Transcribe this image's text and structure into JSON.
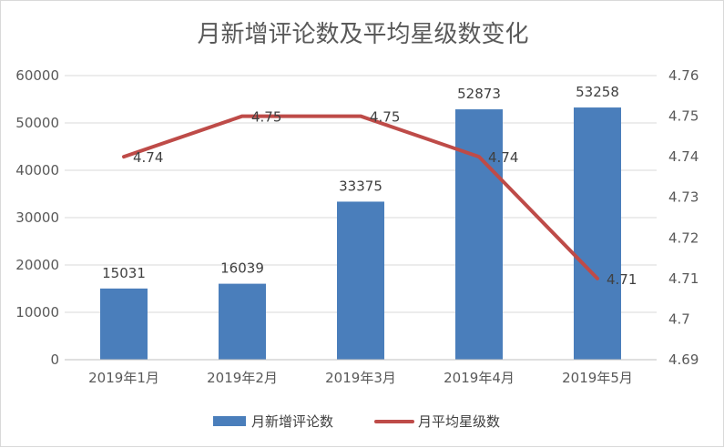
{
  "chart_data": {
    "type": "bar",
    "title": "月新增评论数及平均星级数变化",
    "categories": [
      "2019年1月",
      "2019年2月",
      "2019年3月",
      "2019年4月",
      "2019年5月"
    ],
    "series": [
      {
        "name": "月新增评论数",
        "type": "bar",
        "axis": "left",
        "values": [
          15031,
          16039,
          33375,
          52873,
          53258
        ],
        "labels": [
          "15031",
          "16039",
          "33375",
          "52873",
          "53258"
        ],
        "color": "#4a7ebb"
      },
      {
        "name": "月平均星级数",
        "type": "line",
        "axis": "right",
        "values": [
          4.74,
          4.75,
          4.75,
          4.74,
          4.71
        ],
        "labels": [
          "4.74",
          "4.75",
          "4.75",
          "4.74",
          "4.71"
        ],
        "color": "#be4b48"
      }
    ],
    "left_axis": {
      "ylim": [
        0,
        60000
      ],
      "ticks": [
        "0",
        "10000",
        "20000",
        "30000",
        "40000",
        "50000",
        "60000"
      ]
    },
    "right_axis": {
      "ylim": [
        4.69,
        4.76
      ],
      "ticks": [
        "4.69",
        "4.7",
        "4.71",
        "4.72",
        "4.73",
        "4.74",
        "4.75",
        "4.76"
      ]
    },
    "grid": true,
    "legend_position": "bottom"
  }
}
